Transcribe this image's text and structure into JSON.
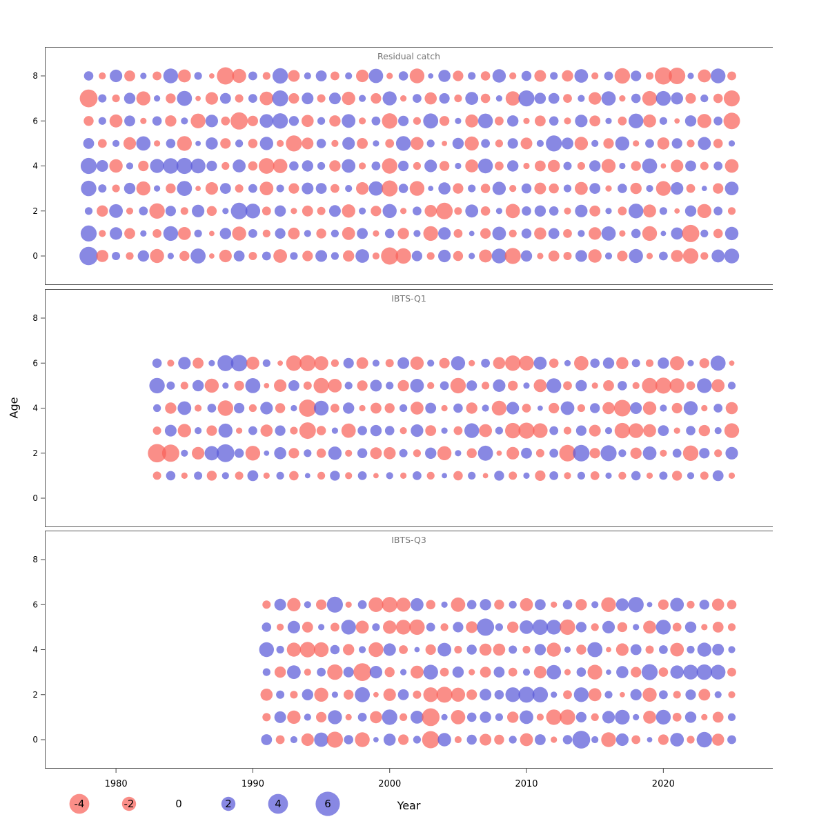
{
  "chart_data": {
    "type": "bubble",
    "title": "Stock assessment residuals by fleet",
    "xlabel": "Year",
    "ylabel": "Age",
    "x_ticks": [
      1980,
      1990,
      2000,
      2010,
      2020
    ],
    "x_range": [
      1974.8,
      2028.0
    ],
    "y_ticks": [
      0,
      2,
      4,
      6,
      8
    ],
    "y_range": [
      -1,
      9
    ],
    "grid": false,
    "legend": {
      "values": [
        -4,
        -2,
        0,
        2,
        4,
        6
      ],
      "position": "bottom"
    },
    "size_scale": "radius proportional to sqrt(abs(value))",
    "colors": {
      "negative": "#f8625a",
      "positive": "#5a5ad8",
      "panel_title": "#757575",
      "axis": "#444444",
      "border": "#555555"
    },
    "panels": [
      {
        "title": "Residual catch",
        "start_year": 1978,
        "end_year": 2025,
        "residuals": {
          "0": [
            3.4,
            -1.5,
            0.7,
            -0.6,
            1.3,
            -2.0,
            0.4,
            -1.0,
            2.3,
            -0.3,
            -1.6,
            1.2,
            -0.7,
            0.8,
            -1.9,
            0.6,
            -1.1,
            1.4,
            0.6,
            -1.3,
            1.9,
            -0.5,
            -3.0,
            -2.4,
            1.1,
            -0.6,
            1.6,
            -1.0,
            0.4,
            -1.7,
            2.2,
            -2.6,
            1.3,
            -0.4,
            -1.2,
            -0.7,
            1.4,
            -1.8,
            0.5,
            -1.1,
            2.0,
            -0.4,
            0.8,
            -1.5,
            -2.4,
            -0.6,
            1.7,
            2.2
          ],
          "1": [
            2.6,
            -0.5,
            1.6,
            -1.2,
            0.4,
            -0.8,
            2.2,
            -1.7,
            0.6,
            -0.3,
            1.3,
            -2.0,
            0.8,
            -0.6,
            1.1,
            -1.4,
            0.5,
            -1.0,
            0.6,
            -1.7,
            1.2,
            -0.4,
            0.9,
            -1.3,
            0.5,
            -2.2,
            1.6,
            -0.8,
            0.3,
            -1.1,
            1.9,
            -0.6,
            1.0,
            -1.5,
            1.2,
            -0.8,
            0.5,
            -1.6,
            2.1,
            -0.4,
            0.9,
            -2.2,
            0.3,
            1.5,
            -3.0,
            0.6,
            -0.9,
            1.8
          ],
          "2": [
            0.6,
            -1.3,
            1.9,
            -0.5,
            0.8,
            -2.4,
            1.1,
            -0.6,
            1.6,
            -1.0,
            0.4,
            2.8,
            2.2,
            -0.8,
            1.3,
            -0.4,
            -1.2,
            -0.7,
            1.4,
            -1.8,
            0.5,
            -1.1,
            2.0,
            -0.4,
            0.8,
            -1.5,
            -2.8,
            -0.6,
            1.7,
            -0.9,
            0.4,
            -2.1,
            0.9,
            1.3,
            0.9,
            -0.5,
            1.6,
            -1.2,
            0.4,
            -0.8,
            2.2,
            -1.7,
            0.6,
            -0.3,
            1.3,
            -2.0,
            0.8,
            -0.6
          ],
          "3": [
            2.4,
            0.7,
            -0.6,
            1.3,
            -2.0,
            0.4,
            -1.0,
            2.3,
            -0.3,
            -1.6,
            1.2,
            -0.7,
            0.8,
            -1.9,
            0.6,
            -1.1,
            1.4,
            1.2,
            -0.8,
            0.5,
            -1.6,
            2.1,
            -2.6,
            0.9,
            -2.2,
            0.3,
            1.5,
            -1.1,
            0.6,
            -0.9,
            1.8,
            -0.5,
            1.0,
            -1.4,
            -1.0,
            0.6,
            -1.7,
            1.2,
            -0.4,
            0.9,
            -1.3,
            0.5,
            -2.2,
            1.6,
            -0.8,
            0.3,
            -1.1,
            1.9
          ],
          "4": [
            2.6,
            1.4,
            -1.8,
            0.5,
            -1.1,
            2.0,
            2.4,
            2.6,
            2.2,
            1.1,
            -0.6,
            1.7,
            -0.9,
            -2.5,
            -2.1,
            0.9,
            1.3,
            0.6,
            -1.3,
            1.9,
            -0.5,
            0.8,
            -2.4,
            1.1,
            -0.6,
            1.6,
            -1.0,
            0.4,
            -1.7,
            2.2,
            -0.8,
            1.3,
            -0.4,
            -1.2,
            -1.5,
            0.7,
            -0.6,
            1.3,
            -2.0,
            0.4,
            -1.0,
            2.3,
            -0.3,
            -1.6,
            1.2,
            -0.7,
            0.8,
            -1.9
          ],
          "5": [
            1.2,
            -0.8,
            0.5,
            -1.6,
            2.1,
            -0.4,
            0.9,
            -2.2,
            0.3,
            1.5,
            -1.1,
            0.6,
            -0.9,
            1.8,
            -0.5,
            -2.6,
            -1.4,
            0.9,
            -0.5,
            1.6,
            -1.2,
            0.4,
            -0.8,
            2.2,
            -1.7,
            0.6,
            -0.3,
            1.3,
            -2.0,
            0.8,
            -0.6,
            1.1,
            -1.4,
            0.5,
            2.6,
            1.4,
            -1.8,
            0.5,
            -1.1,
            2.0,
            -0.4,
            0.8,
            -1.5,
            1.1,
            -0.6,
            1.7,
            -0.9,
            0.4
          ],
          "6": [
            -1.0,
            0.6,
            -1.7,
            1.2,
            -0.4,
            0.9,
            -1.3,
            0.5,
            -2.2,
            1.6,
            -0.8,
            -3.0,
            -1.1,
            1.9,
            2.4,
            1.0,
            -1.5,
            0.6,
            -1.3,
            1.9,
            -0.5,
            0.8,
            -2.4,
            1.1,
            -0.6,
            2.3,
            -1.0,
            0.4,
            -1.7,
            2.2,
            -0.8,
            1.3,
            -0.4,
            -1.2,
            0.9,
            -0.5,
            1.6,
            -1.2,
            0.4,
            -0.8,
            2.2,
            -1.7,
            0.6,
            -0.3,
            1.3,
            -2.0,
            0.8,
            -2.8
          ],
          "7": [
            -3.2,
            0.7,
            -0.6,
            1.3,
            -2.0,
            0.4,
            -1.0,
            2.3,
            -0.3,
            -1.6,
            1.2,
            -0.7,
            0.8,
            -1.9,
            2.6,
            -1.1,
            1.4,
            -0.7,
            1.4,
            -1.8,
            0.5,
            -1.1,
            2.0,
            -0.4,
            0.8,
            -1.5,
            1.1,
            -0.6,
            1.7,
            -0.9,
            0.4,
            -2.1,
            2.6,
            1.3,
            1.2,
            -0.8,
            0.5,
            -1.6,
            2.1,
            -0.4,
            0.9,
            -2.2,
            2.2,
            1.5,
            -1.1,
            0.6,
            -0.9,
            -2.6
          ],
          "8": [
            0.9,
            -0.5,
            1.6,
            -1.2,
            0.4,
            -0.8,
            2.2,
            -1.7,
            0.6,
            -0.3,
            -3.0,
            -2.0,
            0.8,
            -0.6,
            2.4,
            -1.4,
            0.5,
            1.2,
            -0.8,
            0.5,
            -1.6,
            2.1,
            -0.4,
            0.9,
            -2.2,
            0.3,
            1.5,
            -1.1,
            0.6,
            -0.9,
            1.8,
            -0.5,
            1.0,
            -1.4,
            0.6,
            -1.3,
            1.9,
            -0.5,
            0.8,
            -2.4,
            1.1,
            -0.6,
            -3.0,
            -2.8,
            0.4,
            -1.7,
            2.2,
            -0.8
          ]
        }
      },
      {
        "title": "IBTS-Q1",
        "start_year": 1983,
        "end_year": 2025,
        "residuals": {
          "1": [
            -0.7,
            0.9,
            -0.4,
            0.7,
            -1.0,
            0.5,
            -0.7,
            1.2,
            -0.4,
            0.6,
            -0.9,
            0.3,
            -0.6,
            1.0,
            -0.5,
            0.8,
            -0.3,
            0.5,
            -0.4,
            0.8,
            -0.6,
            0.3,
            -0.9,
            0.6,
            -0.3,
            1.0,
            -0.7,
            0.4,
            -1.1,
            0.8,
            -0.5,
            0.6,
            -0.8,
            0.4,
            -0.6,
            0.9,
            -0.4,
            0.7,
            -1.0,
            0.5,
            -0.7,
            1.2,
            -0.4
          ],
          "2": [
            -3.4,
            -3.0,
            0.5,
            -1.6,
            2.1,
            3.2,
            0.9,
            -2.2,
            0.3,
            1.5,
            -1.1,
            0.6,
            -0.9,
            1.8,
            -0.5,
            1.0,
            -1.4,
            -1.5,
            0.7,
            -0.6,
            1.3,
            -2.0,
            0.4,
            -1.0,
            2.3,
            -0.3,
            -1.6,
            1.2,
            -0.7,
            0.8,
            -2.8,
            2.8,
            -1.1,
            2.6,
            0.6,
            -1.3,
            1.9,
            -0.5,
            0.8,
            -2.4,
            1.1,
            -0.6,
            1.6
          ],
          "3": [
            -0.7,
            1.4,
            -1.8,
            0.5,
            -1.1,
            2.0,
            -0.4,
            0.8,
            -1.5,
            1.1,
            -0.6,
            -2.8,
            -0.9,
            0.4,
            -2.1,
            0.9,
            1.3,
            0.9,
            -0.5,
            1.6,
            -1.2,
            0.4,
            -0.8,
            2.2,
            -1.7,
            0.6,
            -2.4,
            -2.6,
            -2.2,
            0.8,
            -0.6,
            1.1,
            -1.4,
            0.5,
            -2.4,
            -2.2,
            -1.7,
            1.2,
            -0.4,
            0.9,
            -1.3,
            0.5,
            -2.2
          ],
          "4": [
            0.6,
            -1.3,
            1.9,
            -0.5,
            0.8,
            -2.4,
            1.1,
            -0.6,
            1.6,
            -1.0,
            0.4,
            -3.0,
            2.2,
            -0.8,
            1.3,
            -0.4,
            -1.2,
            -1.0,
            0.6,
            -1.7,
            1.2,
            -0.4,
            0.9,
            -1.3,
            0.5,
            -2.2,
            1.6,
            -0.8,
            0.3,
            -1.1,
            1.9,
            -0.6,
            1.0,
            -1.5,
            -2.8,
            1.4,
            -1.8,
            0.5,
            -1.1,
            2.0,
            -0.4,
            0.8,
            -1.5
          ],
          "5": [
            2.4,
            0.7,
            -0.6,
            1.3,
            -2.0,
            0.4,
            -1.0,
            2.3,
            -0.3,
            -1.6,
            1.2,
            -0.7,
            -2.4,
            -1.9,
            0.6,
            -1.1,
            1.4,
            0.6,
            -1.3,
            1.9,
            -0.5,
            0.8,
            -2.4,
            1.1,
            -0.6,
            1.6,
            -1.0,
            0.4,
            -1.7,
            2.2,
            -0.8,
            1.3,
            -0.4,
            -1.2,
            0.9,
            -0.5,
            -2.4,
            -2.6,
            -2.2,
            -0.8,
            2.2,
            -1.7,
            0.6
          ],
          "6": [
            0.9,
            -0.5,
            1.6,
            -1.2,
            0.4,
            2.6,
            2.8,
            -1.7,
            0.6,
            -0.3,
            -2.4,
            -2.6,
            -2.0,
            -0.6,
            1.1,
            -1.4,
            0.5,
            -0.7,
            1.4,
            -1.8,
            0.5,
            -1.1,
            2.0,
            -0.4,
            0.8,
            -1.5,
            -2.4,
            -2.2,
            1.7,
            -0.9,
            0.4,
            -2.1,
            0.9,
            1.3,
            -1.5,
            0.7,
            -0.6,
            1.3,
            -2.0,
            0.4,
            -1.0,
            2.3,
            -0.3
          ]
        }
      },
      {
        "title": "IBTS-Q3",
        "start_year": 1991,
        "end_year": 2025,
        "residuals": {
          "0": [
            1.2,
            -0.8,
            0.5,
            -1.6,
            2.1,
            -2.6,
            0.9,
            -2.2,
            0.3,
            1.5,
            -1.1,
            0.6,
            -3.0,
            1.8,
            -0.5,
            1.0,
            -1.4,
            -1.0,
            0.6,
            -1.7,
            1.2,
            -0.4,
            0.9,
            3.2,
            0.5,
            -2.2,
            1.6,
            -0.8,
            0.3,
            -1.1,
            1.9,
            -0.6,
            2.4,
            -1.5,
            0.8
          ],
          "1": [
            -0.7,
            1.4,
            -1.8,
            0.5,
            -1.1,
            2.0,
            -0.4,
            0.8,
            -1.5,
            2.4,
            -0.6,
            1.7,
            -3.2,
            0.4,
            -2.1,
            0.9,
            1.3,
            0.6,
            -1.3,
            1.9,
            -0.5,
            -2.4,
            -2.4,
            1.1,
            -0.6,
            1.6,
            2.2,
            0.4,
            -1.7,
            2.2,
            -0.8,
            1.3,
            -0.4,
            -1.2,
            0.6
          ],
          "2": [
            -1.5,
            0.7,
            -0.6,
            1.3,
            -2.0,
            0.4,
            -1.0,
            2.3,
            -0.3,
            -1.6,
            1.2,
            -0.7,
            -2.2,
            -2.6,
            -2.0,
            -1.1,
            1.4,
            0.9,
            2.2,
            2.6,
            2.4,
            0.4,
            -0.8,
            2.2,
            -1.7,
            0.6,
            -0.3,
            1.3,
            -2.0,
            0.8,
            -0.6,
            1.1,
            -1.4,
            0.5,
            -0.5
          ],
          "3": [
            0.6,
            -1.3,
            1.9,
            -0.5,
            0.8,
            -2.4,
            1.1,
            -3.2,
            1.6,
            -1.0,
            0.4,
            -1.7,
            2.2,
            -0.8,
            1.3,
            -0.4,
            -1.2,
            1.2,
            -0.8,
            0.5,
            -1.6,
            2.1,
            -0.4,
            0.9,
            -2.2,
            0.3,
            1.5,
            -1.1,
            2.6,
            -0.9,
            1.8,
            2.2,
            2.4,
            2.2,
            -0.8
          ],
          "4": [
            2.2,
            0.6,
            -2.0,
            -2.4,
            -2.2,
            0.9,
            -1.3,
            0.5,
            -2.2,
            1.6,
            -0.8,
            0.3,
            -1.1,
            1.9,
            -0.6,
            1.0,
            -1.5,
            -1.5,
            0.7,
            -0.6,
            1.3,
            -2.0,
            0.4,
            -1.0,
            2.3,
            -0.3,
            -1.6,
            1.2,
            -0.7,
            0.8,
            -1.9,
            0.6,
            2.0,
            1.4,
            0.5
          ],
          "5": [
            0.9,
            -0.5,
            1.6,
            -1.2,
            0.4,
            -0.8,
            2.2,
            -1.7,
            0.6,
            -1.8,
            -2.2,
            -2.4,
            0.8,
            -0.6,
            1.1,
            -1.4,
            3.0,
            0.6,
            -1.3,
            1.9,
            2.4,
            2.2,
            -2.4,
            1.1,
            -0.6,
            1.6,
            -1.0,
            0.4,
            -1.7,
            2.2,
            -0.8,
            1.3,
            -0.4,
            -1.2,
            -0.6
          ],
          "6": [
            -0.7,
            1.4,
            -1.8,
            0.5,
            -1.1,
            2.6,
            -0.4,
            0.8,
            -2.2,
            -2.4,
            -2.0,
            1.7,
            -0.9,
            0.4,
            -2.1,
            0.9,
            1.3,
            -1.0,
            0.6,
            -1.7,
            1.2,
            -0.4,
            0.9,
            -1.3,
            0.5,
            -2.2,
            1.6,
            2.4,
            0.3,
            -1.1,
            1.9,
            -0.6,
            1.0,
            -1.5,
            -0.9
          ]
        }
      }
    ]
  }
}
